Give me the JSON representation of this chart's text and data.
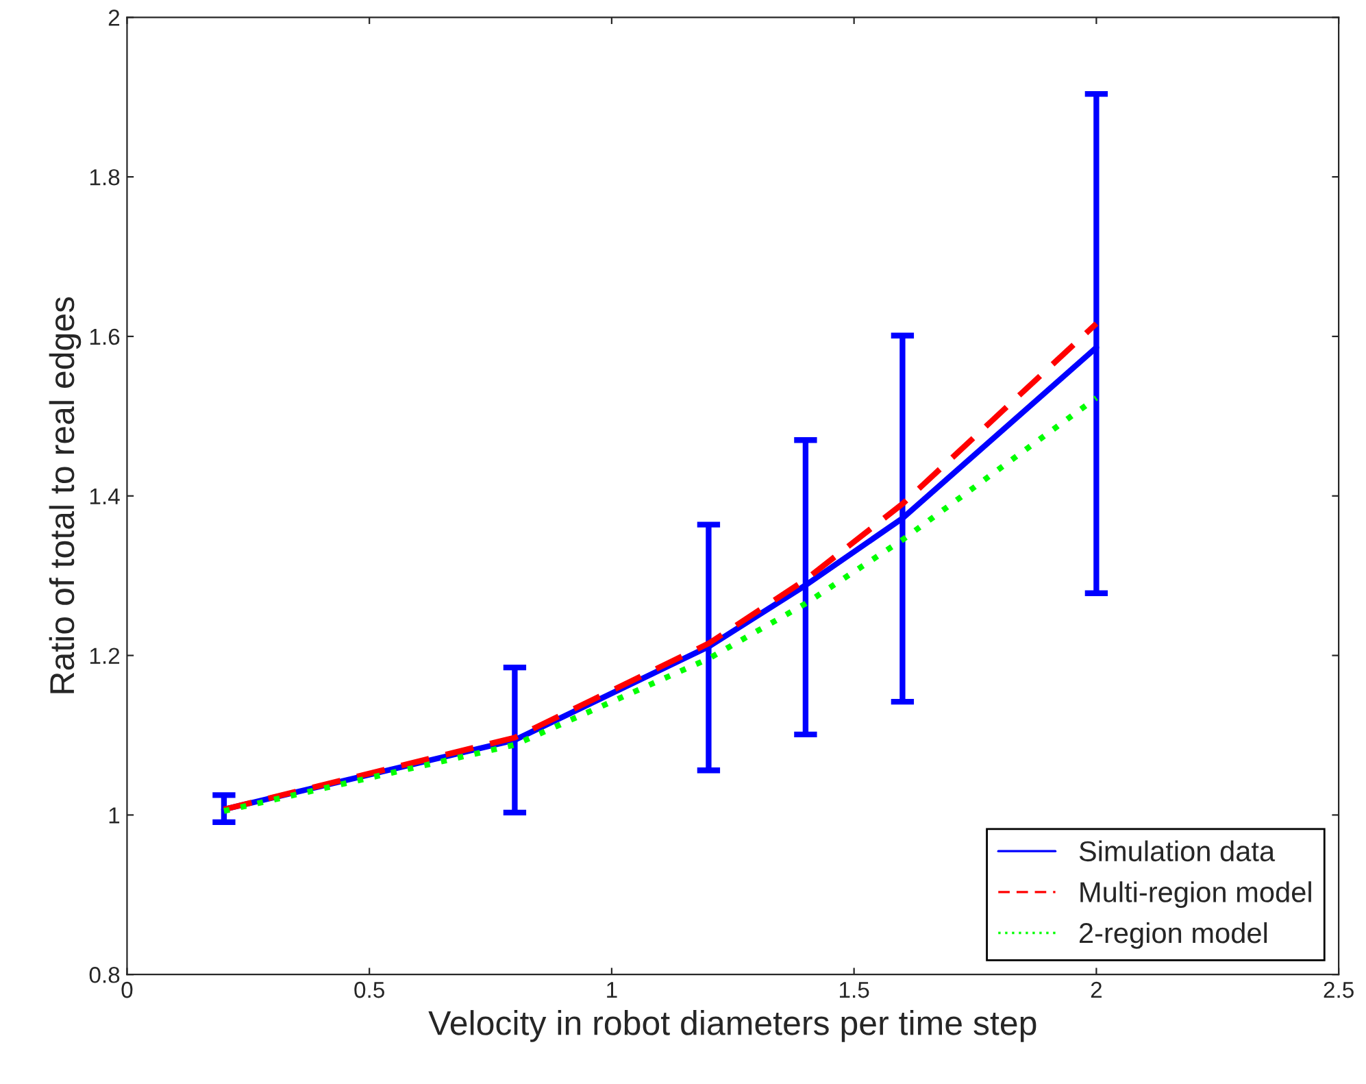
{
  "chart_data": {
    "type": "line",
    "xlabel": "Velocity in robot diameters per time step",
    "ylabel": "Ratio of total to real edges",
    "x": [
      0.2,
      0.8,
      1.2,
      1.4,
      1.6,
      2.0
    ],
    "series": [
      {
        "name": "Simulation data",
        "color": "#0000ff",
        "line_style": "solid",
        "values": [
          1.007,
          1.094,
          1.211,
          1.288,
          1.372,
          1.586
        ],
        "errors": [
          [
            0.991,
            1.025
          ],
          [
            1.003,
            1.185
          ],
          [
            1.056,
            1.364
          ],
          [
            1.101,
            1.47
          ],
          [
            1.142,
            1.601
          ],
          [
            1.278,
            1.904
          ]
        ]
      },
      {
        "name": "Multi-region model",
        "color": "#ff0000",
        "line_style": "dashed",
        "values": [
          1.007,
          1.097,
          1.215,
          1.295,
          1.39,
          1.616
        ]
      },
      {
        "name": "2-region model",
        "color": "#00ff00",
        "line_style": "dotted",
        "values": [
          1.005,
          1.088,
          1.196,
          1.265,
          1.345,
          1.523
        ]
      }
    ],
    "xlim": [
      0,
      2.5
    ],
    "xticks": [
      0,
      0.5,
      1,
      1.5,
      2,
      2.5
    ],
    "ylim": [
      0.8,
      2
    ],
    "yticks": [
      0.8,
      1,
      1.2,
      1.4,
      1.6,
      1.8,
      2
    ],
    "legend": "bottom right",
    "grid": false
  }
}
